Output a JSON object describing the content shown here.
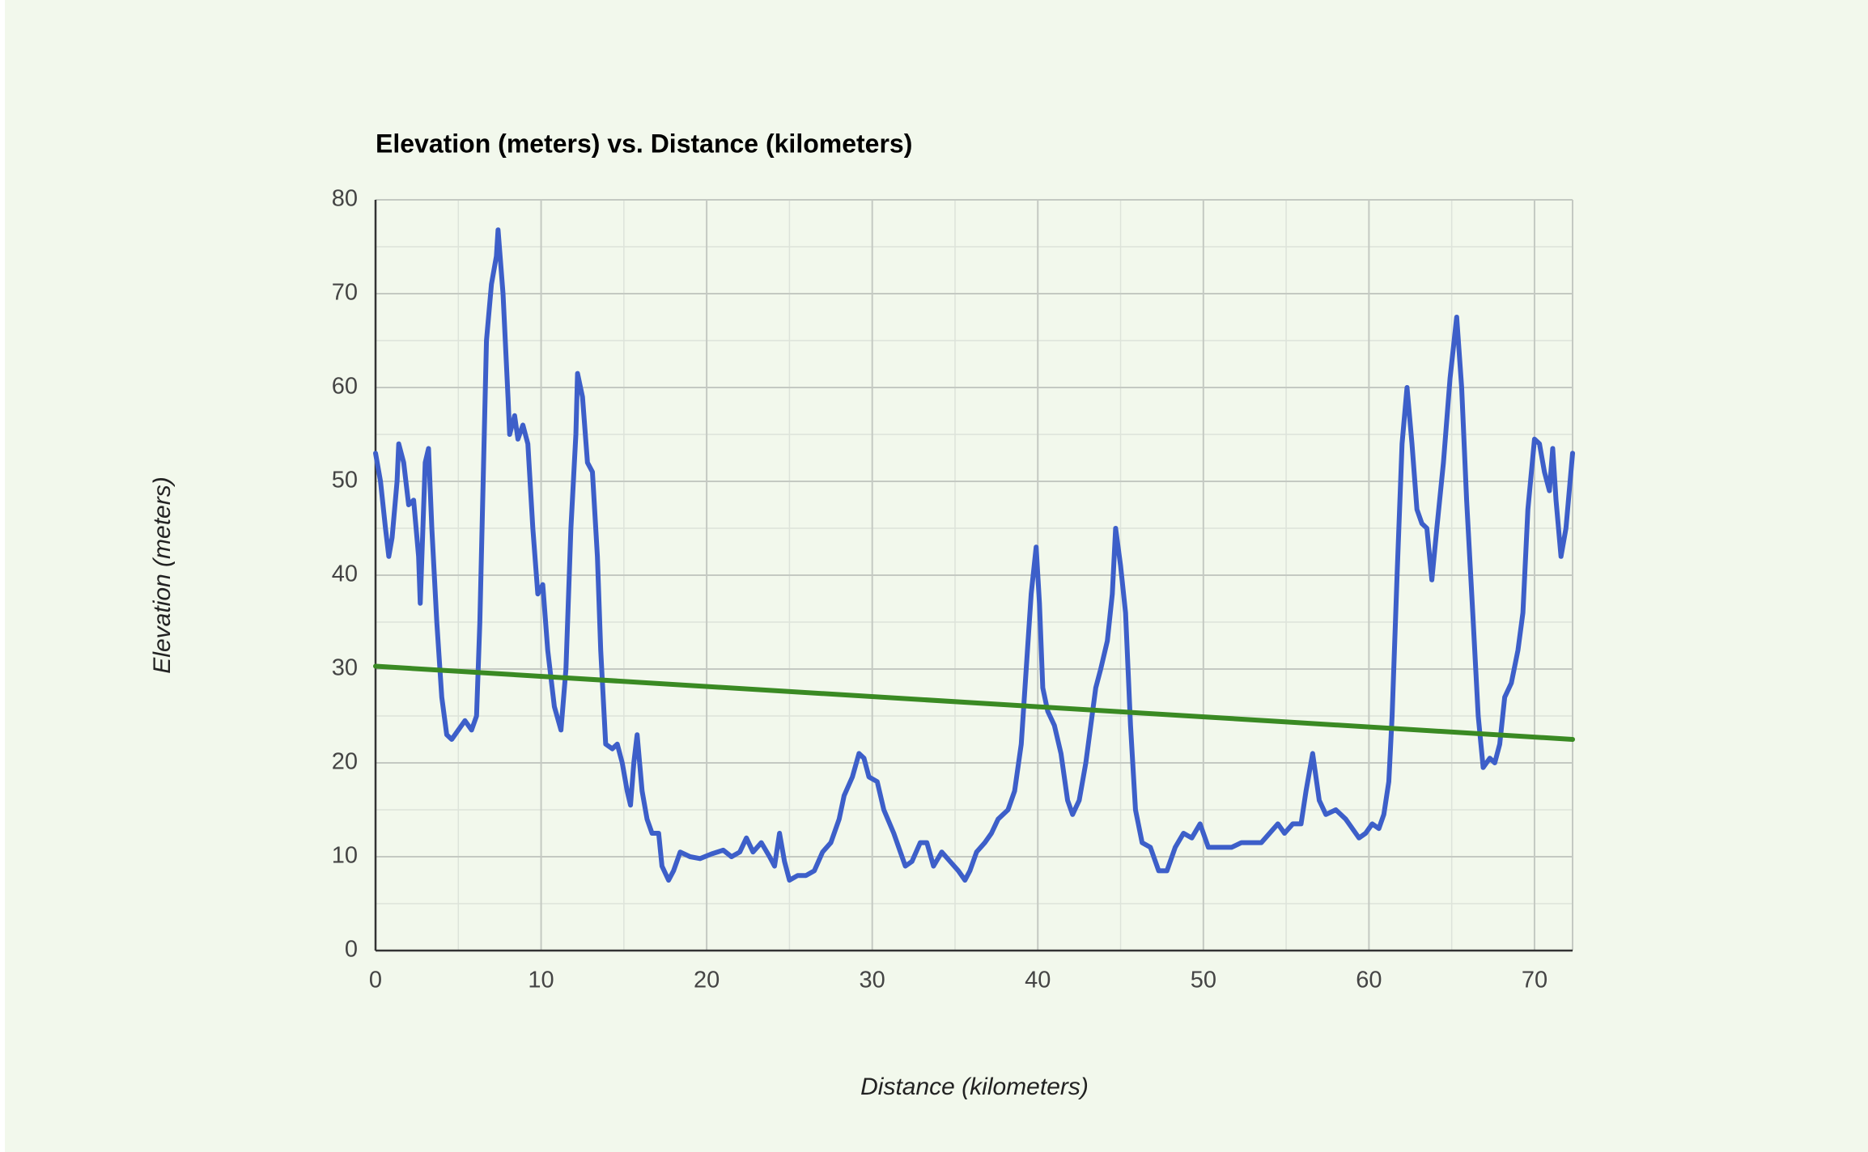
{
  "chart_data": {
    "type": "line",
    "title": "Elevation (meters) vs. Distance (kilometers)",
    "x_label": "Distance (kilometers)",
    "y_label": "Elevation (meters)",
    "x": [
      0,
      0.3,
      0.6,
      0.8,
      1.0,
      1.3,
      1.4,
      1.7,
      2.0,
      2.3,
      2.6,
      2.7,
      3.0,
      3.2,
      3.4,
      3.7,
      4.0,
      4.3,
      4.6,
      5.0,
      5.4,
      5.8,
      6.1,
      6.3,
      6.5,
      6.7,
      7.0,
      7.3,
      7.4,
      7.7,
      8.0,
      8.1,
      8.4,
      8.6,
      8.9,
      9.2,
      9.5,
      9.8,
      10.1,
      10.4,
      10.8,
      11.2,
      11.5,
      11.8,
      12.1,
      12.2,
      12.5,
      12.8,
      13.1,
      13.4,
      13.6,
      13.9,
      14.3,
      14.6,
      14.9,
      15.2,
      15.4,
      15.6,
      15.8,
      16.1,
      16.4,
      16.7,
      17.1,
      17.3,
      17.7,
      18.0,
      18.4,
      19.0,
      19.6,
      20.3,
      21.0,
      21.5,
      22.0,
      22.4,
      22.8,
      23.3,
      23.8,
      24.1,
      24.4,
      24.7,
      25.0,
      25.5,
      26.0,
      26.5,
      27.0,
      27.5,
      28.0,
      28.3,
      28.8,
      29.2,
      29.5,
      29.8,
      30.3,
      30.7,
      31.3,
      31.7,
      32.0,
      32.4,
      32.9,
      33.3,
      33.7,
      34.2,
      34.7,
      35.2,
      35.6,
      35.9,
      36.3,
      36.8,
      37.2,
      37.6,
      38.2,
      38.6,
      39.0,
      39.3,
      39.6,
      39.9,
      40.1,
      40.3,
      40.6,
      41.0,
      41.4,
      41.8,
      42.1,
      42.5,
      42.9,
      43.2,
      43.5,
      43.8,
      44.2,
      44.5,
      44.7,
      45.0,
      45.3,
      45.6,
      45.9,
      46.3,
      46.8,
      47.3,
      47.8,
      48.3,
      48.8,
      49.3,
      49.8,
      50.3,
      51.0,
      51.7,
      52.3,
      53.0,
      53.5,
      54.0,
      54.5,
      54.9,
      55.4,
      55.9,
      56.2,
      56.6,
      57.0,
      57.4,
      58.0,
      58.6,
      59.0,
      59.4,
      59.8,
      60.2,
      60.6,
      60.9,
      61.2,
      61.4,
      61.7,
      62.0,
      62.3,
      62.6,
      62.9,
      63.2,
      63.5,
      63.8,
      64.1,
      64.5,
      64.9,
      65.3,
      65.6,
      65.9,
      66.3,
      66.6,
      66.9,
      67.3,
      67.6,
      67.9,
      68.2,
      68.6,
      69.0,
      69.3,
      69.6,
      70.0,
      70.3,
      70.6,
      70.9,
      71.1,
      71.3,
      71.6,
      71.9,
      72.3
    ],
    "series": [
      {
        "color": "#3d5fc9",
        "values": [
          53,
          50,
          45,
          42,
          44,
          50,
          54,
          52,
          47.5,
          48,
          42,
          37,
          52,
          53.5,
          45,
          35,
          27,
          23,
          22.5,
          23.5,
          24.5,
          23.5,
          25,
          35,
          50,
          65,
          71,
          74,
          76.8,
          70,
          59,
          55,
          57,
          54.5,
          56,
          54,
          45,
          38,
          39,
          32,
          26,
          23.5,
          30,
          45,
          55,
          61.5,
          59,
          52,
          51,
          42,
          32,
          22,
          21.5,
          22,
          20,
          17,
          15.5,
          20,
          23,
          17,
          14,
          12.5,
          12.5,
          9,
          7.5,
          8.5,
          10.5,
          10,
          9.8,
          10.3,
          10.7,
          10,
          10.5,
          12,
          10.5,
          11.5,
          10,
          9,
          12.5,
          9.5,
          7.5,
          8,
          8,
          8.5,
          10.5,
          11.5,
          14,
          16.5,
          18.5,
          21,
          20.5,
          18.5,
          18,
          15,
          12.5,
          10.5,
          9,
          9.5,
          11.5,
          11.5,
          9,
          10.5,
          9.5,
          8.5,
          7.5,
          8.5,
          10.5,
          11.5,
          12.5,
          14,
          15,
          17,
          22,
          30,
          38,
          43,
          37,
          28,
          25.5,
          24,
          21,
          16,
          14.5,
          16,
          20,
          24,
          28,
          30,
          33,
          38,
          45,
          41,
          36,
          24,
          15,
          11.5,
          11,
          8.5,
          8.5,
          11,
          12.5,
          12,
          13.5,
          11,
          11,
          11,
          11.5,
          11.5,
          11.5,
          12.5,
          13.5,
          12.5,
          13.5,
          13.5,
          17,
          21,
          16,
          14.5,
          15,
          14,
          13,
          12,
          12.5,
          13.5,
          13,
          14.5,
          18,
          25,
          40,
          54,
          60,
          54,
          47,
          45.5,
          45,
          39.5,
          45,
          52,
          61,
          67.5,
          60,
          48,
          35,
          25,
          19.5,
          20.5,
          20,
          22,
          27,
          28.5,
          32,
          36,
          47,
          54.5,
          54,
          51,
          49,
          53.5,
          48,
          42,
          45,
          53
        ]
      }
    ],
    "trendline": {
      "x": [
        0,
        72.3
      ],
      "values": [
        30.3,
        22.5
      ],
      "color": "#3a8a23"
    },
    "xlim": [
      0,
      72.3
    ],
    "ylim": [
      0,
      80
    ],
    "xticks": [
      0,
      10,
      20,
      30,
      40,
      50,
      60,
      70
    ],
    "yticks": [
      0,
      10,
      20,
      30,
      40,
      50,
      60,
      70,
      80
    ],
    "grid": true,
    "minor_grid": true
  }
}
